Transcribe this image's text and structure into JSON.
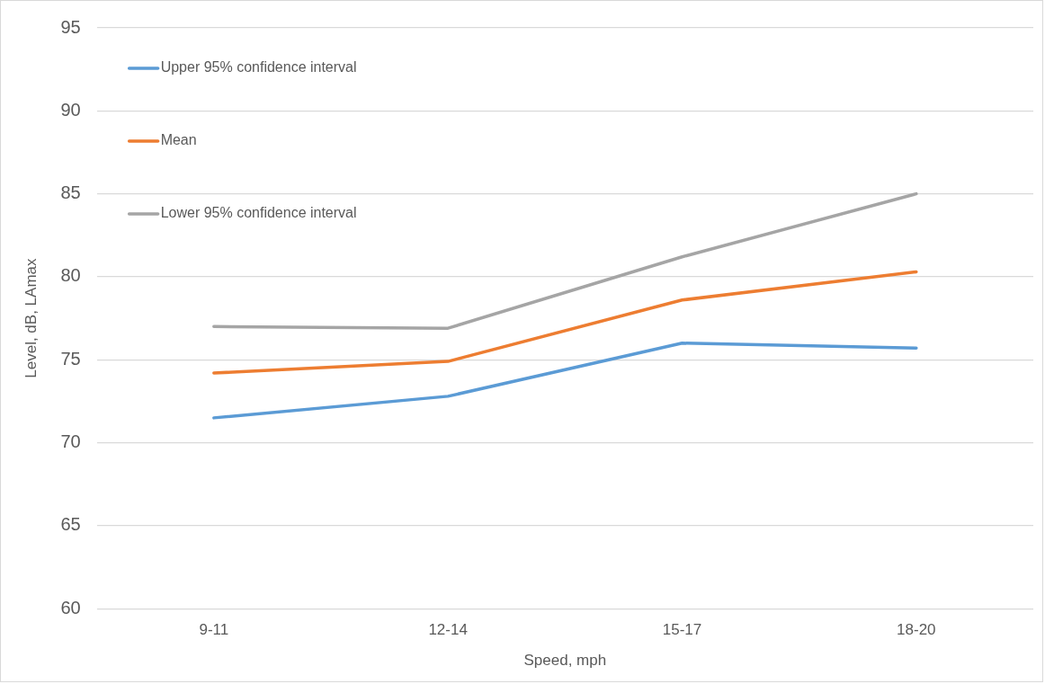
{
  "chart_data": {
    "type": "line",
    "xlabel": "Speed, mph",
    "ylabel": "Level, dB, LAmax",
    "categories": [
      "9-11",
      "12-14",
      "15-17",
      "18-20"
    ],
    "series": [
      {
        "name": "Upper 95% confidence interval",
        "color": "#5b9bd5",
        "values": [
          71.5,
          72.8,
          76.0,
          75.7
        ]
      },
      {
        "name": "Mean",
        "color": "#ed7d31",
        "values": [
          74.2,
          74.9,
          78.6,
          80.3
        ]
      },
      {
        "name": "Lower 95% confidence interval",
        "color": "#a5a5a5",
        "values": [
          77.0,
          76.9,
          81.2,
          85.0
        ]
      }
    ],
    "ylim": [
      60,
      95
    ],
    "yticks": [
      60,
      65,
      70,
      75,
      80,
      85,
      90,
      95
    ],
    "grid": "y",
    "legend": "top left",
    "marker": "none",
    "line_style": "solid"
  }
}
